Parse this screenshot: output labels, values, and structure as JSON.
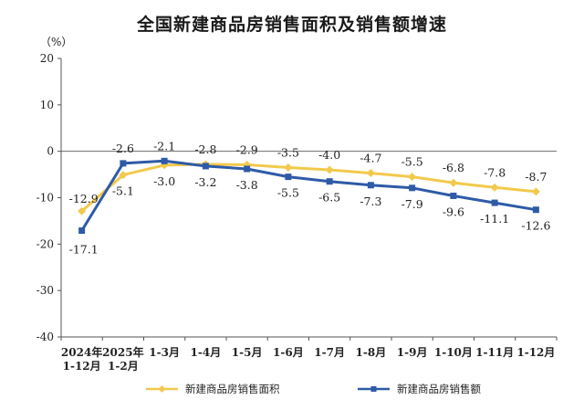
{
  "chart_data": {
    "type": "line",
    "title": "全国新建商品房销售面积及销售额增速",
    "ylabel": "（%）",
    "xlabel": "",
    "ylim": [
      -40,
      20
    ],
    "yticks": [
      20,
      10,
      0,
      -10,
      -20,
      -30,
      -40
    ],
    "categories": [
      [
        "2024年",
        "1-12月"
      ],
      [
        "2025年",
        "1-2月"
      ],
      [
        "1-3月"
      ],
      [
        "1-4月"
      ],
      [
        "1-5月"
      ],
      [
        "1-6月"
      ],
      [
        "1-7月"
      ],
      [
        "1-8月"
      ],
      [
        "1-9月"
      ],
      [
        "1-10月"
      ],
      [
        "1-11月"
      ],
      [
        "1-12月"
      ]
    ],
    "grid": false,
    "legend_position": "bottom",
    "series": [
      {
        "name": "新建商品房销售面积",
        "color": "#F2C94C",
        "marker": "diamond",
        "values": [
          -12.9,
          -5.1,
          -3.0,
          -2.8,
          -2.9,
          -3.5,
          -4.0,
          -4.7,
          -5.5,
          -6.8,
          -7.8,
          -8.7
        ],
        "labels": [
          "-12.9",
          "-5.1",
          "-3.0",
          "-2.8",
          "-2.9",
          "-3.5",
          "-4.0",
          "-4.7",
          "-5.5",
          "-6.8",
          "-7.8",
          "-8.7"
        ]
      },
      {
        "name": "新建商品房销售额",
        "color": "#2E5AA7",
        "marker": "square",
        "values": [
          -17.1,
          -2.6,
          -2.1,
          -3.2,
          -3.8,
          -5.5,
          -6.5,
          -7.3,
          -7.9,
          -9.6,
          -11.1,
          -12.6
        ],
        "labels": [
          "-17.1",
          "-2.6",
          "-2.1",
          "-3.2",
          "-3.8",
          "-5.5",
          "-6.5",
          "-7.3",
          "-7.9",
          "-9.6",
          "-11.1",
          "-12.6"
        ]
      }
    ]
  }
}
